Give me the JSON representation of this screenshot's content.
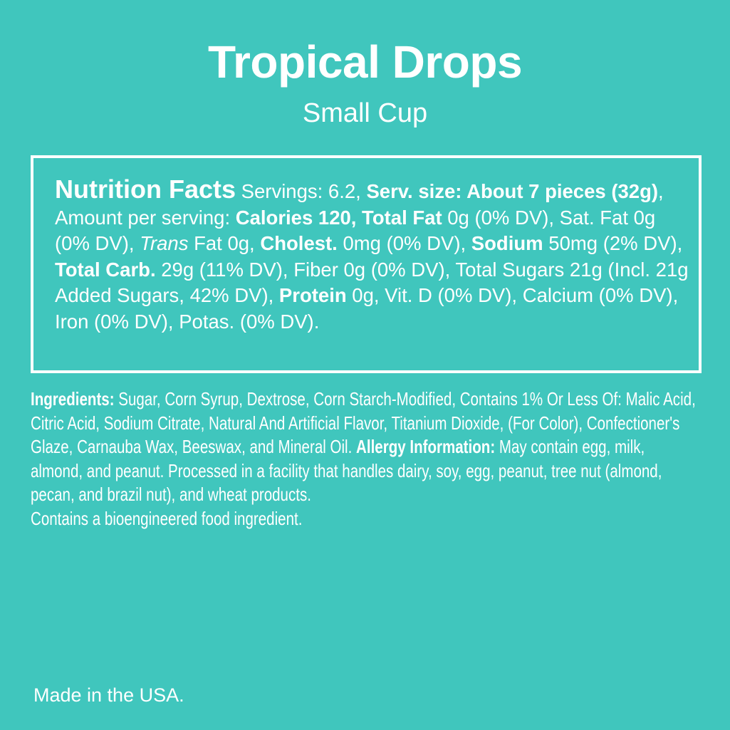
{
  "header": {
    "title": "Tropical Drops",
    "subtitle": "Small Cup"
  },
  "nutrition": {
    "heading": "Nutrition Facts",
    "segments": [
      {
        "t": " Servings: 6.2, "
      },
      {
        "t": "Serv. size: About 7 pieces (32g)",
        "b": true
      },
      {
        "t": ", Amount per serving: "
      },
      {
        "t": "Calories 120, Total Fat",
        "b": true
      },
      {
        "t": " 0g (0% DV), Sat. Fat 0g (0% DV), "
      },
      {
        "t": "Trans",
        "i": true
      },
      {
        "t": " Fat 0g, "
      },
      {
        "t": "Cholest.",
        "b": true
      },
      {
        "t": " 0mg (0% DV), "
      },
      {
        "t": "Sodium",
        "b": true
      },
      {
        "t": " 50mg (2% DV), "
      },
      {
        "t": "Total Carb.",
        "b": true
      },
      {
        "t": " 29g (11% DV), Fiber 0g (0% DV), Total Sugars 21g (Incl. 21g Added Sugars, 42% DV), "
      },
      {
        "t": "Protein",
        "b": true
      },
      {
        "t": " 0g, Vit. D (0% DV), Calcium (0% DV), Iron (0% DV), Potas. (0% DV)."
      }
    ]
  },
  "ingredients": {
    "segments": [
      {
        "t": "Ingredients:",
        "b": true
      },
      {
        "t": " Sugar, Corn Syrup, Dextrose, Corn Starch-Modified, Contains 1% Or Less Of: Malic Acid, Citric Acid, Sodium Citrate, Natural And Artificial Flavor, Titanium Dioxide, (For Color), Confectioner's Glaze, Carnauba Wax, Beeswax, and Mineral Oil. "
      },
      {
        "t": "Allergy Information:",
        "b": true
      },
      {
        "t": " May contain egg, milk, almond, and peanut. Processed in a facility that handles dairy, soy, egg, peanut, tree nut (almond, pecan, and brazil nut), and wheat products."
      }
    ],
    "bioengineered": "Contains a bioengineered food ingredient."
  },
  "footer": {
    "origin": "Made in the USA."
  },
  "colors": {
    "background": "#40c6bd",
    "text": "#ffffff"
  }
}
